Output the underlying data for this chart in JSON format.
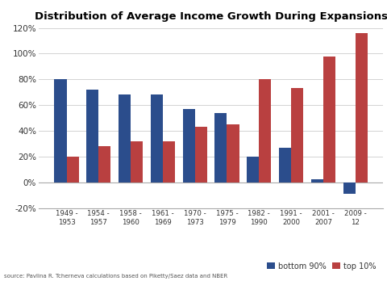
{
  "title": "Distribution of Average Income Growth During Expansions",
  "categories": [
    "1949 -\n1953",
    "1954 -\n1957",
    "1958 -\n1960",
    "1961 -\n1969",
    "1970 -\n1973",
    "1975 -\n1979",
    "1982 -\n1990",
    "1991 -\n2000",
    "2001 -\n2007",
    "2009 -\n12"
  ],
  "bottom90": [
    80,
    72,
    68,
    68,
    57,
    54,
    20,
    27,
    2,
    -9
  ],
  "top10": [
    20,
    28,
    32,
    32,
    43,
    45,
    80,
    73,
    98,
    116
  ],
  "bottom90_color": "#2b4d8c",
  "top10_color": "#b94040",
  "ylim": [
    -20,
    122
  ],
  "yticks": [
    -20,
    0,
    20,
    40,
    60,
    80,
    100,
    120
  ],
  "ytick_labels": [
    "-20%",
    "0%",
    "20%",
    "40%",
    "60%",
    "80%",
    "100%",
    "120%"
  ],
  "source_text": "source: Pavlina R. Tcherneva calculations based on Piketty/Saez data and NBER",
  "legend_bottom90": "bottom 90%",
  "legend_top10": "top 10%",
  "background_color": "#ffffff"
}
